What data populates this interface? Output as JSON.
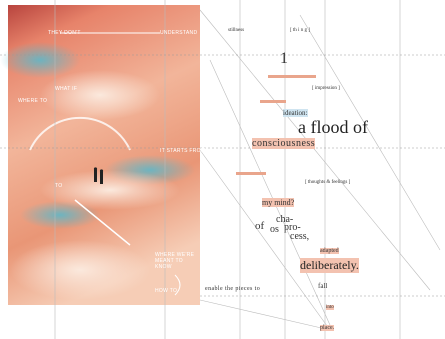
{
  "left_panel": {
    "labels": [
      "THEY DON'T",
      "UNDERSTAND",
      "WHAT IF",
      "WHERE TO",
      "IT STARTS FROM",
      "TO",
      "WHERE WE'RE MEANT TO KNOW",
      "HOW TO"
    ]
  },
  "right_panel": {
    "words": [
      "stillness",
      "[ th i n g ]",
      "1",
      "[ impression ]",
      "ideation:",
      "a flood of",
      "consciousness",
      "[ thoughts & feelings ]",
      "my mind?",
      "of",
      "cha-",
      "os",
      "pro-",
      "cess,",
      "adapted",
      "deliberately.",
      "enable the pieces to",
      "fall",
      "into",
      "place."
    ]
  }
}
